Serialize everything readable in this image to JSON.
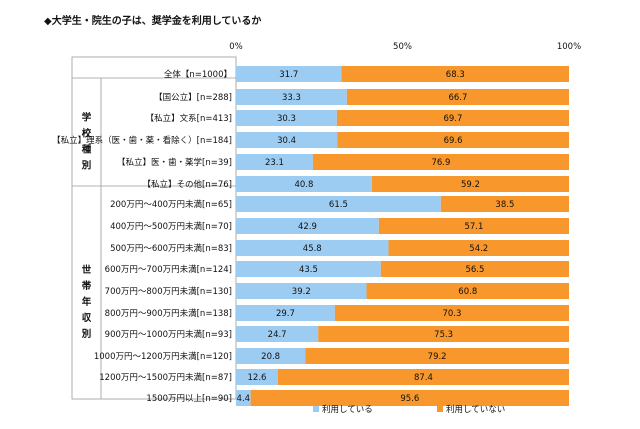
{
  "title": "◆大学生・院生の子は、奨学金を利用しているか",
  "colors": {
    "using": "#9DCCF3",
    "not_using": "#F7972C"
  },
  "chart_data": {
    "type": "bar",
    "orientation": "horizontal",
    "stacked": true,
    "percent_stacked": true,
    "xlim": [
      0,
      100
    ],
    "x_tick_labels": [
      "0%",
      "50%",
      "100%"
    ],
    "grid": false,
    "legend_position": "bottom",
    "groups": [
      {
        "label": "",
        "rows": [
          0
        ]
      },
      {
        "label": "学校種別",
        "rows": [
          1,
          2,
          3,
          4,
          5
        ]
      },
      {
        "label": "世帯年収別",
        "rows": [
          6,
          7,
          8,
          9,
          10,
          11,
          12,
          13,
          14,
          15
        ]
      }
    ],
    "categories": [
      "全体【n=1000】",
      "【国公立】[n=288]",
      "【私立】文系[n=413]",
      "【私立】理系（医・歯・薬・看除く）[n=184]",
      "【私立】医・歯・薬学[n=39]",
      "【私立】その他[n=76]",
      "200万円～400万円未満[n=65]",
      "400万円～500万円未満[n=70]",
      "500万円～600万円未満[n=83]",
      "600万円～700万円未満[n=124]",
      "700万円～800万円未満[n=130]",
      "800万円～900万円未満[n=138]",
      "900万円～1000万円未満[n=93]",
      "1000万円～1200万円未満[n=120]",
      "1200万円～1500万円未満[n=87]",
      "1500万円以上[n=90]"
    ],
    "series": [
      {
        "name": "利用している",
        "color": "#9DCCF3",
        "values": [
          31.7,
          33.3,
          30.3,
          30.4,
          23.1,
          40.8,
          61.5,
          42.9,
          45.8,
          43.5,
          39.2,
          29.7,
          24.7,
          20.8,
          12.6,
          4.4
        ],
        "labels": [
          "31.7",
          "33.3",
          "30.3",
          "30.4",
          "23.1",
          "40.8",
          "61.5",
          "42.9",
          "45.8",
          "43.5",
          "39.2",
          "29.7",
          "24.7",
          "20.8",
          "12.6",
          "4.4"
        ]
      },
      {
        "name": "利用していない",
        "color": "#F7972C",
        "values": [
          68.3,
          66.7,
          69.7,
          69.6,
          76.9,
          59.2,
          38.5,
          57.1,
          54.2,
          56.5,
          60.8,
          70.3,
          75.3,
          79.2,
          87.4,
          95.6
        ],
        "labels": [
          "68.3",
          "66.7",
          "69.7",
          "69.6",
          "76.9",
          "59.2",
          "38.5",
          "57.1",
          "54.2",
          "56.5",
          "60.8",
          "70.3",
          "75.3",
          "79.2",
          "87.4",
          "95.6"
        ]
      }
    ]
  }
}
